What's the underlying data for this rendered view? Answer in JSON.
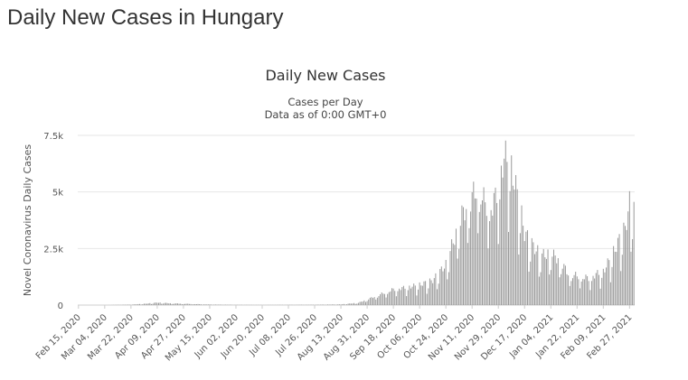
{
  "page": {
    "heading": "Daily New Cases in Hungary"
  },
  "chart_data": {
    "type": "bar",
    "title": "Daily New Cases",
    "subtitle_lines": [
      "Cases per Day",
      "Data as of 0:00 GMT+0"
    ],
    "ylabel": "Novel Coronavirus Daily Cases",
    "xlabel": "",
    "ylim": [
      0,
      7500
    ],
    "y_ticks": [
      0,
      2500,
      5000,
      7500
    ],
    "y_tick_labels": [
      "0",
      "2.5k",
      "5k",
      "7.5k"
    ],
    "x_tick_labels": [
      "Feb 15, 2020",
      "Mar 04, 2020",
      "Mar 22, 2020",
      "Apr 09, 2020",
      "Apr 27, 2020",
      "May 15, 2020",
      "Jun 02, 2020",
      "Jun 20, 2020",
      "Jul 08, 2020",
      "Jul 26, 2020",
      "Aug 13, 2020",
      "Aug 31, 2020",
      "Sep 18, 2020",
      "Oct 06, 2020",
      "Oct 24, 2020",
      "Nov 11, 2020",
      "Nov 29, 2020",
      "Dec 17, 2020",
      "Jan 04, 2021",
      "Jan 22, 2021",
      "Feb 09, 2021",
      "Feb 27, 2021"
    ],
    "grid": true,
    "legend": false,
    "bar_color": "#999999",
    "date_range": [
      "2020-02-15",
      "2021-03-02"
    ],
    "anchors": [
      [
        "2020-02-15",
        0
      ],
      [
        "2020-03-04",
        0
      ],
      [
        "2020-03-10",
        5
      ],
      [
        "2020-03-22",
        20
      ],
      [
        "2020-04-01",
        60
      ],
      [
        "2020-04-09",
        110
      ],
      [
        "2020-04-18",
        80
      ],
      [
        "2020-04-27",
        60
      ],
      [
        "2020-05-15",
        25
      ],
      [
        "2020-06-02",
        10
      ],
      [
        "2020-06-20",
        5
      ],
      [
        "2020-07-08",
        10
      ],
      [
        "2020-07-26",
        15
      ],
      [
        "2020-08-13",
        30
      ],
      [
        "2020-08-25",
        100
      ],
      [
        "2020-08-31",
        250
      ],
      [
        "2020-09-08",
        450
      ],
      [
        "2020-09-18",
        700
      ],
      [
        "2020-09-28",
        800
      ],
      [
        "2020-10-06",
        900
      ],
      [
        "2020-10-15",
        1100
      ],
      [
        "2020-10-24",
        1800
      ],
      [
        "2020-10-30",
        3000
      ],
      [
        "2020-11-04",
        4000
      ],
      [
        "2020-11-11",
        4800
      ],
      [
        "2020-11-15",
        5300
      ],
      [
        "2020-11-20",
        4500
      ],
      [
        "2020-11-25",
        4400
      ],
      [
        "2020-11-29",
        5200
      ],
      [
        "2020-12-02",
        6400
      ],
      [
        "2020-12-06",
        6600
      ],
      [
        "2020-12-10",
        5500
      ],
      [
        "2020-12-14",
        4300
      ],
      [
        "2020-12-17",
        3200
      ],
      [
        "2020-12-22",
        2700
      ],
      [
        "2020-12-28",
        2200
      ],
      [
        "2021-01-04",
        2300
      ],
      [
        "2021-01-10",
        2000
      ],
      [
        "2021-01-16",
        1400
      ],
      [
        "2021-01-22",
        1300
      ],
      [
        "2021-01-30",
        1200
      ],
      [
        "2021-02-05",
        1400
      ],
      [
        "2021-02-09",
        1500
      ],
      [
        "2021-02-15",
        2200
      ],
      [
        "2021-02-20",
        2900
      ],
      [
        "2021-02-24",
        3400
      ],
      [
        "2021-02-27",
        4500
      ],
      [
        "2021-03-02",
        4300
      ]
    ]
  }
}
